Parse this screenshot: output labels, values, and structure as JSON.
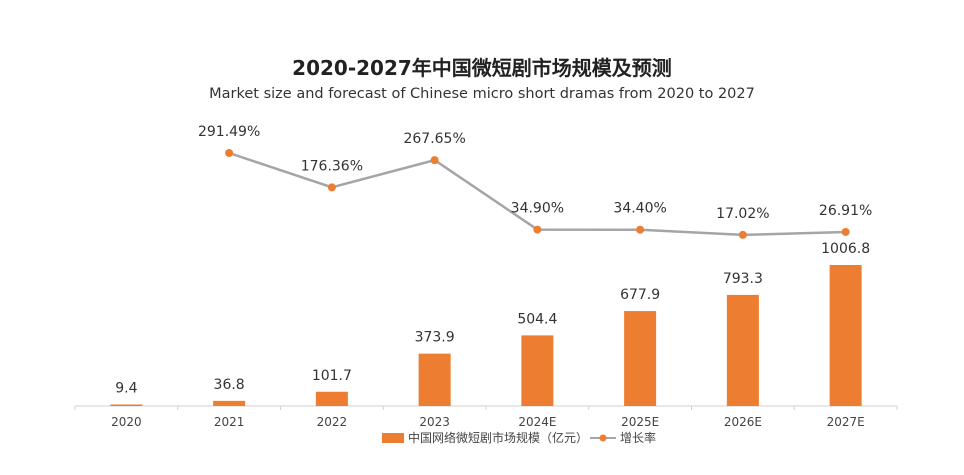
{
  "chart_data": {
    "type": "bar",
    "title": "2020-2027年中国微短剧市场规模及预测",
    "subtitle": "Market size and forecast of Chinese micro short dramas from 2020 to 2027",
    "categories": [
      "2020",
      "2021",
      "2022",
      "2023",
      "2024E",
      "2025E",
      "2026E",
      "2027E"
    ],
    "series": [
      {
        "name": "中国网络微短剧市场规模（亿元）",
        "type": "bar",
        "values": [
          9.4,
          36.8,
          101.7,
          373.9,
          504.4,
          677.9,
          793.3,
          1006.8
        ],
        "labels": [
          "9.4",
          "36.8",
          "101.7",
          "373.9",
          "504.4",
          "677.9",
          "793.3",
          "1006.8"
        ],
        "color": "#ED7D31"
      },
      {
        "name": "增长率",
        "type": "line",
        "values": [
          null,
          291.49,
          176.36,
          267.65,
          34.9,
          34.4,
          17.02,
          26.91
        ],
        "labels": [
          "",
          "291.49%",
          "176.36%",
          "267.65%",
          "34.90%",
          "34.40%",
          "17.02%",
          "26.91%"
        ],
        "line_color": "#A5A5A5",
        "marker_color": "#ED7D31"
      }
    ],
    "legend_position": "bottom",
    "grid": false
  }
}
